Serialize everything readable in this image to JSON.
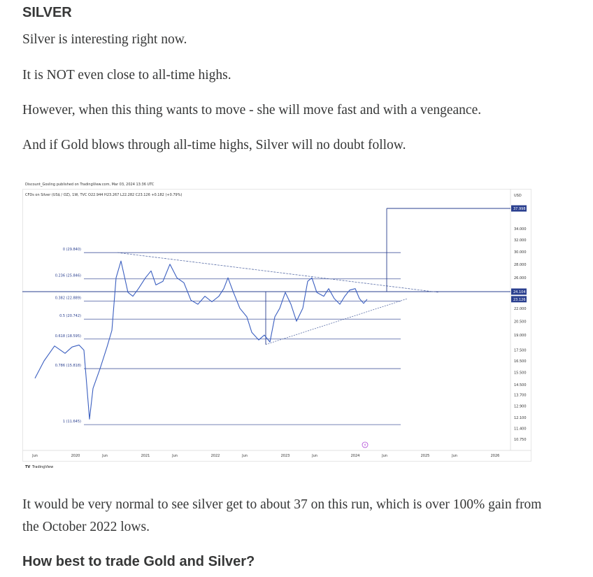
{
  "article": {
    "heading1": "SILVER",
    "para1": "Silver is interesting right now.",
    "para2": "It is NOT even close to all-time highs.",
    "para3": "However, when this thing wants to move - she will move fast and with a vengeance.",
    "para4": "And if Gold blows through all-time highs, Silver will no doubt follow.",
    "para5": "It would be very normal to see silver get to about 37 on this run, which is over 100% gain from the October 2022 lows.",
    "heading2": "How best to trade Gold and Silver?"
  },
  "chart_data": {
    "type": "line",
    "header_line1": "Discount_Gosling published on TradingView.com, Mar 03, 2024 13:36 UTC",
    "header_line2": "CFDs on Silver (US$ / OZ), 1W, TVC  O22.944  H23.267  L22.282  C23.126  +0.182 (+0.79%)",
    "currency_label": "USD",
    "watermark": "TradingView",
    "y_axis": {
      "scale": "log",
      "ticks": [
        "34.000",
        "32.000",
        "30.000",
        "28.000",
        "26.000",
        "22.000",
        "20.500",
        "19.000",
        "17.500",
        "16.500",
        "15.500",
        "14.500",
        "13.700",
        "12.900",
        "12.100",
        "11.400",
        "10.750"
      ]
    },
    "price_tags": [
      {
        "label": "37.998",
        "value": 37.998
      },
      {
        "label": "24.104",
        "value": 24.104
      },
      {
        "label": "23.126",
        "value": 23.126
      }
    ],
    "x_axis": {
      "ticks": [
        {
          "label": "Jun",
          "t": 2019.42
        },
        {
          "label": "2020",
          "t": 2020.0
        },
        {
          "label": "Jun",
          "t": 2020.42
        },
        {
          "label": "2021",
          "t": 2021.0
        },
        {
          "label": "Jun",
          "t": 2021.42
        },
        {
          "label": "2022",
          "t": 2022.0
        },
        {
          "label": "Jun",
          "t": 2022.42
        },
        {
          "label": "2023",
          "t": 2023.0
        },
        {
          "label": "Jun",
          "t": 2023.42
        },
        {
          "label": "2024",
          "t": 2024.0
        },
        {
          "label": "Jun",
          "t": 2024.42
        },
        {
          "label": "2025",
          "t": 2025.0
        },
        {
          "label": "Jun",
          "t": 2025.42
        },
        {
          "label": "2026",
          "t": 2026.0
        }
      ]
    },
    "fib_levels": [
      {
        "label": "0 (29.840)",
        "value": 29.84
      },
      {
        "label": "0.236 (25.846)",
        "value": 25.846
      },
      {
        "label": "0.382 (22.889)",
        "value": 22.889
      },
      {
        "label": "0.5 (20.742)",
        "value": 20.742
      },
      {
        "label": "0.618 (18.595)",
        "value": 18.595
      },
      {
        "label": "0.786 (15.818)",
        "value": 15.818
      },
      {
        "label": "1 (11.645)",
        "value": 11.645
      }
    ],
    "horizontal_line": 24.104,
    "target": 37.998,
    "series": [
      {
        "points": [
          [
            2019.42,
            15.0
          ],
          [
            2019.55,
            16.5
          ],
          [
            2019.7,
            17.9
          ],
          [
            2019.85,
            17.2
          ],
          [
            2019.95,
            17.8
          ],
          [
            2020.05,
            18.0
          ],
          [
            2020.12,
            17.5
          ],
          [
            2020.2,
            12.0
          ],
          [
            2020.25,
            14.2
          ],
          [
            2020.35,
            15.8
          ],
          [
            2020.45,
            17.8
          ],
          [
            2020.52,
            19.5
          ],
          [
            2020.58,
            26.0
          ],
          [
            2020.65,
            28.5
          ],
          [
            2020.75,
            24.0
          ],
          [
            2020.82,
            23.5
          ],
          [
            2020.9,
            24.5
          ],
          [
            2021.0,
            26.0
          ],
          [
            2021.08,
            27.0
          ],
          [
            2021.15,
            25.0
          ],
          [
            2021.25,
            25.5
          ],
          [
            2021.35,
            28.0
          ],
          [
            2021.45,
            26.0
          ],
          [
            2021.55,
            25.3
          ],
          [
            2021.65,
            23.0
          ],
          [
            2021.75,
            22.5
          ],
          [
            2021.85,
            23.5
          ],
          [
            2021.95,
            22.8
          ],
          [
            2022.05,
            23.5
          ],
          [
            2022.12,
            24.5
          ],
          [
            2022.18,
            26.0
          ],
          [
            2022.25,
            24.2
          ],
          [
            2022.35,
            22.0
          ],
          [
            2022.45,
            21.0
          ],
          [
            2022.52,
            19.3
          ],
          [
            2022.62,
            18.5
          ],
          [
            2022.7,
            19.0
          ],
          [
            2022.78,
            18.3
          ],
          [
            2022.85,
            21.0
          ],
          [
            2022.92,
            22.0
          ],
          [
            2023.0,
            24.0
          ],
          [
            2023.08,
            22.5
          ],
          [
            2023.16,
            20.5
          ],
          [
            2023.25,
            22.0
          ],
          [
            2023.32,
            25.5
          ],
          [
            2023.38,
            26.0
          ],
          [
            2023.45,
            24.0
          ],
          [
            2023.55,
            23.5
          ],
          [
            2023.62,
            24.5
          ],
          [
            2023.7,
            23.2
          ],
          [
            2023.78,
            22.5
          ],
          [
            2023.85,
            23.5
          ],
          [
            2023.92,
            24.3
          ],
          [
            2024.0,
            24.5
          ],
          [
            2024.06,
            23.2
          ],
          [
            2024.12,
            22.6
          ],
          [
            2024.17,
            23.126
          ]
        ]
      }
    ]
  }
}
